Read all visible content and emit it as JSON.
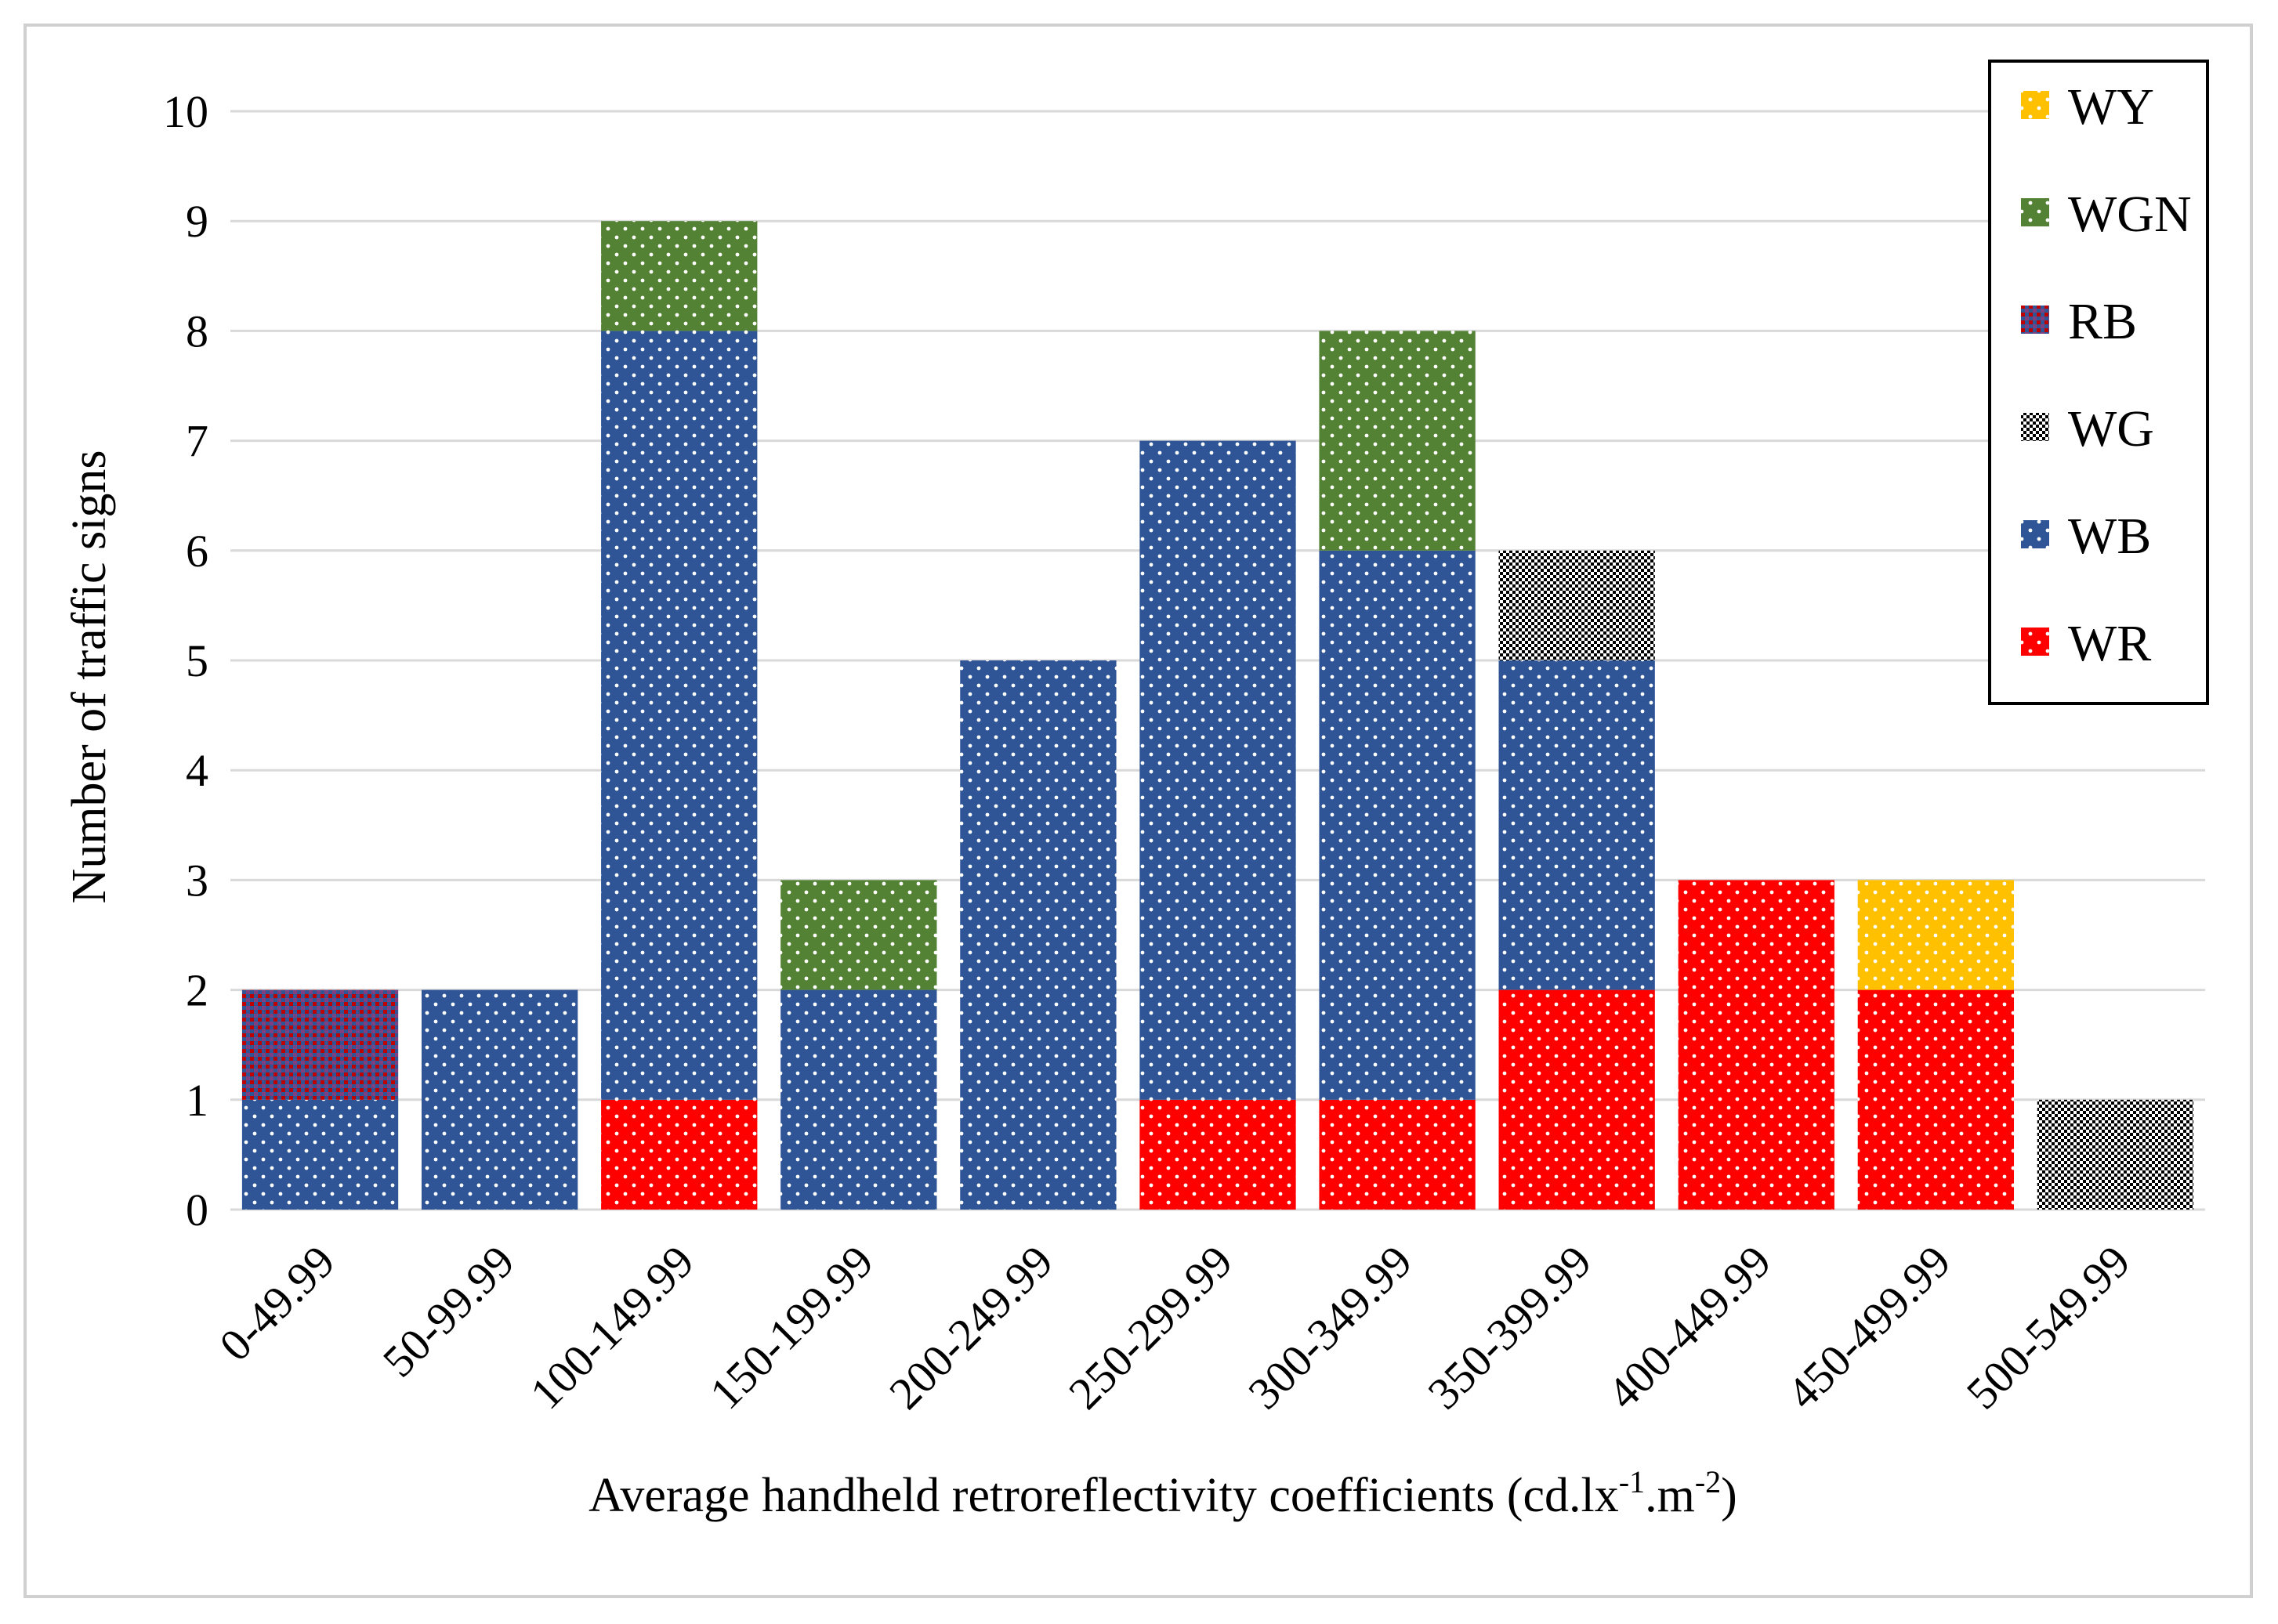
{
  "chart_data": {
    "type": "bar",
    "stacked": true,
    "xlabel": "Average  handheld retroreflectivity  coefficients (cd.lx",
    "xlabel_sup1": "-1",
    "xlabel_mid": ".m",
    "xlabel_sup2": "-2",
    "xlabel_end": ")",
    "ylabel": "Number of traffic  signs",
    "ylim": [
      0,
      10
    ],
    "yticks": [
      "0",
      "1",
      "2",
      "3",
      "4",
      "5",
      "6",
      "7",
      "8",
      "9",
      "10"
    ],
    "grid": true,
    "legend_position": "top-right",
    "categories": [
      "0-49.99",
      "50-99.99",
      "100-149.99",
      "150-199.99",
      "200-249.99",
      "250-299.99",
      "300-349.99",
      "350-399.99",
      "400-449.99",
      "450-499.99",
      "500-549.99"
    ],
    "series": [
      {
        "name": "WR",
        "color": "#ff0000",
        "pattern": "dots",
        "values": [
          0,
          0,
          1,
          0,
          0,
          1,
          1,
          2,
          3,
          2,
          0
        ]
      },
      {
        "name": "WB",
        "color": "#2f5597",
        "pattern": "dots",
        "values": [
          1,
          2,
          7,
          2,
          5,
          6,
          5,
          3,
          0,
          0,
          0
        ]
      },
      {
        "name": "WG",
        "color": "#808080",
        "pattern": "checker",
        "values": [
          0,
          0,
          0,
          0,
          0,
          0,
          0,
          1,
          0,
          0,
          1
        ]
      },
      {
        "name": "RB",
        "color": "#7f3f7f",
        "pattern": "crosshatch",
        "values": [
          1,
          0,
          0,
          0,
          0,
          0,
          0,
          0,
          0,
          0,
          0
        ]
      },
      {
        "name": "WGN",
        "color": "#548235",
        "pattern": "dots",
        "values": [
          0,
          0,
          1,
          1,
          0,
          0,
          2,
          0,
          0,
          0,
          0
        ]
      },
      {
        "name": "WY",
        "color": "#ffc000",
        "pattern": "dots",
        "values": [
          0,
          0,
          0,
          0,
          0,
          0,
          0,
          0,
          0,
          1,
          0
        ]
      }
    ],
    "legend_order": [
      "WY",
      "WGN",
      "RB",
      "WG",
      "WB",
      "WR"
    ]
  }
}
